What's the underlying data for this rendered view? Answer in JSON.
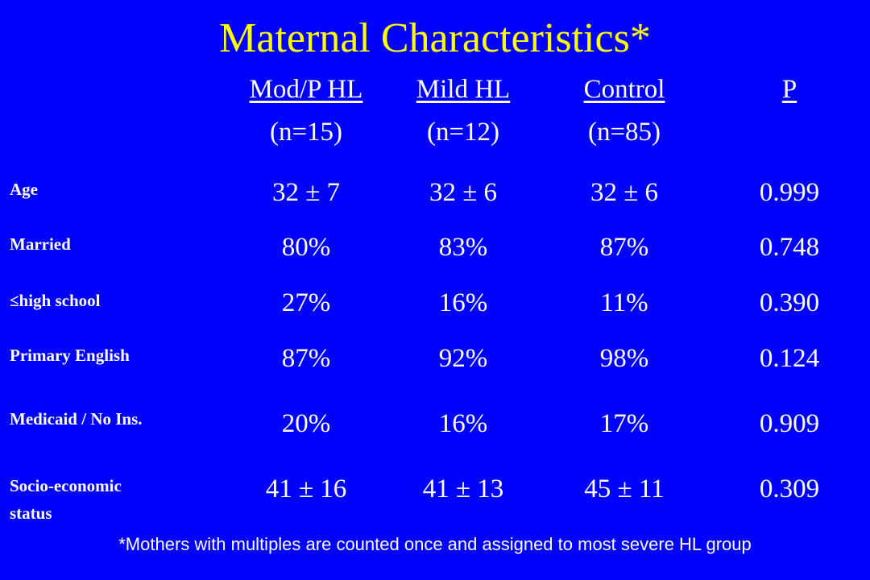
{
  "title": "Maternal Characteristics*",
  "columns": [
    {
      "label": "Mod/P HL",
      "n": "(n=15)"
    },
    {
      "label": "Mild HL",
      "n": "(n=12)"
    },
    {
      "label": "Control",
      "n": "(n=85)"
    },
    {
      "label": "P",
      "n": ""
    }
  ],
  "rows": [
    {
      "label": "Age",
      "values": [
        "32 ± 7",
        "32 ± 6",
        "32 ± 6",
        "0.999"
      ]
    },
    {
      "label": "Married",
      "values": [
        "80%",
        "83%",
        "87%",
        "0.748"
      ]
    },
    {
      "label": "≤high school",
      "values": [
        "27%",
        "16%",
        "11%",
        "0.390"
      ]
    },
    {
      "label": "Primary English",
      "values": [
        "87%",
        "92%",
        "98%",
        "0.124"
      ]
    },
    {
      "label": "Medicaid / No Ins.",
      "values": [
        "20%",
        "16%",
        "17%",
        "0.909"
      ]
    },
    {
      "label": "Socio-economic",
      "label_line2": "status",
      "values": [
        "41 ± 16",
        "41 ± 13",
        "45 ± 11",
        "0.309"
      ]
    }
  ],
  "footnote": "*Mothers with multiples are counted once and assigned to most severe HL group",
  "colors": {
    "background": "#0000ff",
    "title": "#ffff00",
    "text": "#ffffff"
  }
}
